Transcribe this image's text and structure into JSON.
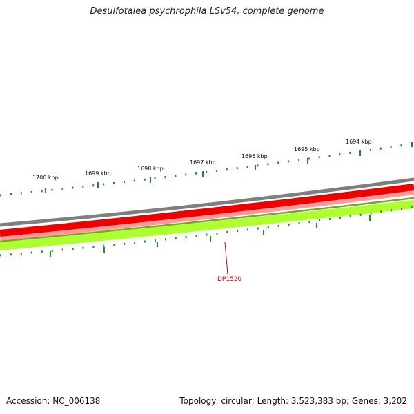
{
  "title": "Desulfotalea psychrophila LSv54, complete genome",
  "footer": {
    "accession": "Accession: NC_006138",
    "summary": "Topology: circular; Length: 3,523,383 bp; Genes: 3,202"
  },
  "scale_labels": [
    "1700 kbp",
    "1699 kbp",
    "1698 kbp",
    "1697 kbp",
    "1696 kbp",
    "1695 kbp",
    "1694 kbp"
  ],
  "gene_label": "DP1520",
  "colors": {
    "outer_ring": "#808080",
    "forward_genes": "#ff0000",
    "reverse_genes": "#adff2f",
    "ticks": "#228b22",
    "gene_label": "#cc0000"
  }
}
